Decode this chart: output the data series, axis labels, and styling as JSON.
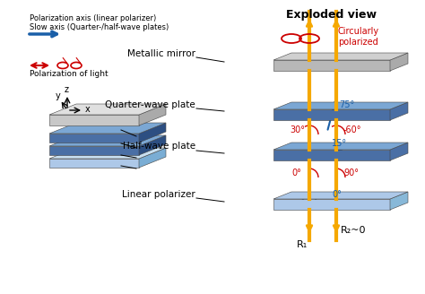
{
  "title": "Exploded view",
  "bg_color": "#ffffff",
  "layer_blue_face": "#4a6fa5",
  "layer_blue_side": "#2d4f82",
  "layer_blue_top": "#7ba7d4",
  "layer_gray_face": "#b0b0b0",
  "layer_gray_top": "#d0d0d0",
  "layer_light_blue_top": "#adc8e8",
  "layer_light_blue_side": "#7aadd4",
  "yellow": "#f5a800",
  "red": "#cc0000",
  "blue_arrow": "#1a5fa8",
  "text_color": "#000000",
  "label_metallic": "Metallic mirror",
  "label_quarter": "Quarter-wave plate",
  "label_half": "Half-wave plate",
  "label_linear": "Linear polarizer",
  "label_circ": "Circularly\npolarized",
  "label_pol_light": "Polarization of light",
  "label_pol_axis": "Polarization axis (linear polarizer)\nSlow axis (Quarter-/half-wave plates)",
  "label_R1": "R₁",
  "label_R2": "R₂~0",
  "angles": [
    "75°",
    "-60°",
    "30°",
    "15°",
    "0°",
    "90°",
    "0°"
  ]
}
